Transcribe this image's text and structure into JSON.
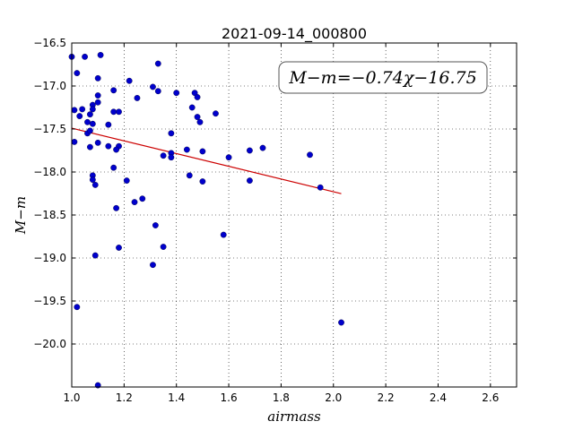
{
  "chart_data": {
    "type": "scatter",
    "title": "2021-09-14_000800",
    "xlabel": "airmass",
    "ylabel": "M−m",
    "xlim": [
      1.0,
      2.7
    ],
    "ylim": [
      -20.5,
      -16.5
    ],
    "y_inverted": true,
    "grid": true,
    "x_ticks": [
      "1.0",
      "1.2",
      "1.4",
      "1.6",
      "1.8",
      "2.0",
      "2.2",
      "2.4",
      "2.6"
    ],
    "y_ticks": [
      "−16.5",
      "−17.0",
      "−17.5",
      "−18.0",
      "−18.5",
      "−19.0",
      "−19.5",
      "−20.0"
    ],
    "annotation": "M−m=−0.74χ−16.75",
    "point_color": "#0000cc",
    "fit_color": "#cc0000",
    "fit": {
      "slope": -0.74,
      "intercept": -16.75,
      "x_range": [
        1.0,
        2.03
      ]
    },
    "points": [
      [
        1.0,
        -16.66
      ],
      [
        1.02,
        -16.85
      ],
      [
        1.11,
        -16.64
      ],
      [
        1.05,
        -16.66
      ],
      [
        1.33,
        -16.74
      ],
      [
        1.1,
        -16.91
      ],
      [
        1.22,
        -16.94
      ],
      [
        1.31,
        -17.01
      ],
      [
        1.33,
        -17.06
      ],
      [
        1.16,
        -17.05
      ],
      [
        1.1,
        -17.11
      ],
      [
        1.4,
        -17.08
      ],
      [
        1.47,
        -17.08
      ],
      [
        1.48,
        -17.13
      ],
      [
        1.25,
        -17.14
      ],
      [
        1.1,
        -17.19
      ],
      [
        1.08,
        -17.22
      ],
      [
        1.04,
        -17.27
      ],
      [
        1.01,
        -17.28
      ],
      [
        1.08,
        -17.27
      ],
      [
        1.16,
        -17.3
      ],
      [
        1.18,
        -17.3
      ],
      [
        1.03,
        -17.35
      ],
      [
        1.07,
        -17.33
      ],
      [
        1.46,
        -17.25
      ],
      [
        1.55,
        -17.32
      ],
      [
        1.48,
        -17.36
      ],
      [
        1.49,
        -17.42
      ],
      [
        1.06,
        -17.42
      ],
      [
        1.08,
        -17.44
      ],
      [
        1.14,
        -17.45
      ],
      [
        1.06,
        -17.55
      ],
      [
        1.07,
        -17.52
      ],
      [
        1.01,
        -17.65
      ],
      [
        1.1,
        -17.66
      ],
      [
        1.14,
        -17.7
      ],
      [
        1.07,
        -17.71
      ],
      [
        1.18,
        -17.7
      ],
      [
        1.17,
        -17.74
      ],
      [
        1.38,
        -17.55
      ],
      [
        1.44,
        -17.74
      ],
      [
        1.5,
        -17.76
      ],
      [
        1.68,
        -17.75
      ],
      [
        1.73,
        -17.72
      ],
      [
        1.35,
        -17.81
      ],
      [
        1.38,
        -17.78
      ],
      [
        1.38,
        -17.83
      ],
      [
        1.6,
        -17.83
      ],
      [
        1.91,
        -17.8
      ],
      [
        1.16,
        -17.95
      ],
      [
        1.45,
        -18.04
      ],
      [
        1.08,
        -18.04
      ],
      [
        1.08,
        -18.09
      ],
      [
        1.09,
        -18.15
      ],
      [
        1.21,
        -18.1
      ],
      [
        1.5,
        -18.11
      ],
      [
        1.68,
        -18.1
      ],
      [
        1.95,
        -18.18
      ],
      [
        1.27,
        -18.31
      ],
      [
        1.24,
        -18.35
      ],
      [
        1.17,
        -18.42
      ],
      [
        1.32,
        -18.62
      ],
      [
        1.58,
        -18.73
      ],
      [
        1.35,
        -18.87
      ],
      [
        1.18,
        -18.88
      ],
      [
        1.09,
        -18.97
      ],
      [
        1.31,
        -19.08
      ],
      [
        1.02,
        -19.57
      ],
      [
        2.03,
        -19.75
      ],
      [
        1.1,
        -20.48
      ]
    ]
  }
}
